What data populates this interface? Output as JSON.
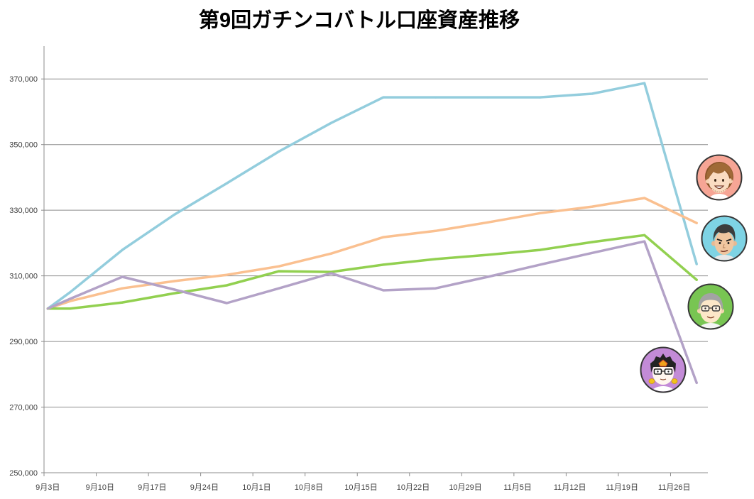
{
  "chart_data": {
    "type": "line",
    "title": "第9回ガチンコバトル口座資産推移",
    "x": [
      "9月3日",
      "9月6日",
      "9月13日",
      "9月20日",
      "9月27日",
      "10月4日",
      "10月11日",
      "10月18日",
      "10月25日",
      "11月1日",
      "11月8日",
      "11月15日",
      "11月22日",
      "11月29日"
    ],
    "series": [
      {
        "color": "#93CDDD",
        "values": [
          300000,
          305000,
          317900,
          328700,
          338200,
          347900,
          356600,
          364400,
          364400,
          364400,
          364400,
          365500,
          368700,
          313600
        ]
      },
      {
        "color": "#FAC090",
        "values": [
          300000,
          302300,
          306200,
          308400,
          310300,
          312900,
          316800,
          321800,
          323700,
          326300,
          329100,
          331100,
          333700,
          326100
        ]
      },
      {
        "color": "#92D050",
        "values": [
          300000,
          300000,
          301900,
          304700,
          307100,
          311400,
          311200,
          313400,
          315100,
          316400,
          317900,
          320300,
          322400,
          308800
        ]
      },
      {
        "color": "#B3A2C7",
        "values": [
          300000,
          303000,
          309700,
          305800,
          301700,
          306200,
          310800,
          305600,
          306200,
          309700,
          313400,
          317000,
          320500,
          277400
        ]
      }
    ],
    "xticks": [
      "9月3日",
      "9月10日",
      "9月17日",
      "9月24日",
      "10月1日",
      "10月8日",
      "10月15日",
      "10月22日",
      "10月29日",
      "11月5日",
      "11月12日",
      "11月19日",
      "11月26日"
    ],
    "yticks": [
      "250,000",
      "270,000",
      "290,000",
      "310,000",
      "330,000",
      "350,000",
      "370,000"
    ],
    "xlim": [
      "9月3日",
      "11月30日"
    ],
    "ylim": [
      250000,
      380000
    ],
    "grid": "horizontal"
  },
  "avatars": [
    {
      "icon": "brown-hair-face-icon",
      "color": "#F6A595"
    },
    {
      "icon": "dark-hair-face-icon",
      "color": "#7ED3E4"
    },
    {
      "icon": "gray-hair-glasses-face-icon",
      "color": "#78C552"
    },
    {
      "icon": "black-hair-glasses-face-icon",
      "color": "#C38BD7"
    }
  ]
}
